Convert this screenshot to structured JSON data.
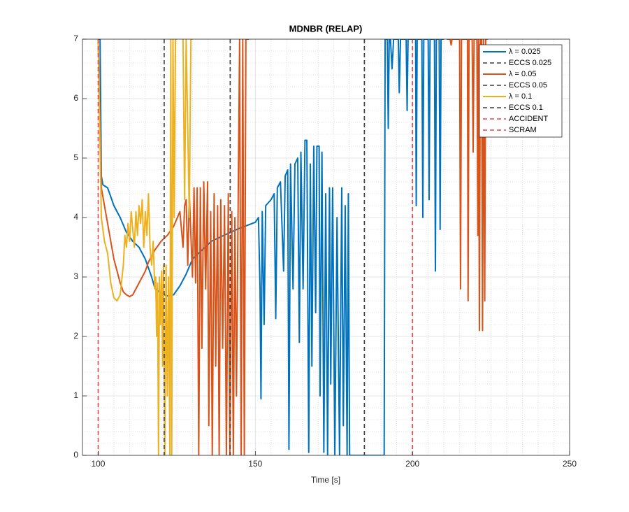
{
  "chart_data": {
    "type": "line",
    "title": "MDNBR (RELAP)",
    "xlabel": "Time [s]",
    "xlim": [
      95,
      250
    ],
    "ylim": [
      0,
      7
    ],
    "xticks": [
      100,
      150,
      200,
      250
    ],
    "yticks": [
      0,
      1,
      2,
      3,
      4,
      5,
      6,
      7
    ],
    "xminorticks": [
      105,
      110,
      115,
      120,
      125,
      130,
      135,
      140,
      145,
      155,
      160,
      165,
      170,
      175,
      180,
      185,
      190,
      195,
      205,
      210,
      215,
      220,
      225,
      230,
      235,
      240,
      245
    ],
    "yminorticks": [
      0.2,
      0.4,
      0.6,
      0.8,
      1.2,
      1.4,
      1.6,
      1.8,
      2.2,
      2.4,
      2.6,
      2.8,
      3.2,
      3.4,
      3.6,
      3.8,
      4.2,
      4.4,
      4.6,
      4.8,
      5.2,
      5.4,
      5.6,
      5.8,
      6.2,
      6.4,
      6.6,
      6.8
    ],
    "grid": true,
    "minor_grid": true,
    "legend": "northeast",
    "series": [
      {
        "name": "λ = 0.025",
        "color": "#0072BD",
        "style": "solid",
        "x": [
          100,
          100.6,
          101,
          101.5,
          103,
          105,
          107,
          109,
          111,
          113,
          115,
          117,
          118,
          120,
          122,
          124,
          126,
          128,
          130,
          133,
          136,
          140,
          145,
          150,
          151,
          151.5,
          151.8,
          152.2,
          152.8,
          153.3,
          155,
          156,
          156.5,
          157,
          158,
          159,
          159.5,
          160.3,
          160.7,
          161.2,
          162,
          162.6,
          163.5,
          164,
          164.5,
          165.2,
          165.8,
          166.4,
          167,
          167.5,
          168,
          168.6,
          169.2,
          169.6,
          170.3,
          170.6,
          171.2,
          171.8,
          172.4,
          173,
          173.6,
          174,
          174.6,
          175.3,
          176,
          176.8,
          177.5,
          178,
          178.6,
          179.2,
          179.6,
          180,
          185,
          190,
          191,
          191.3,
          192,
          192.3,
          192.6,
          193,
          193.5,
          194,
          195.5,
          195.8,
          196.2,
          198,
          198.3,
          198.6,
          201,
          201.2,
          201.5,
          203,
          203.3,
          203.6,
          205,
          205.3,
          205.6,
          207,
          207.3,
          207.6,
          208.5,
          208.8,
          209.1,
          210
        ],
        "values": [
          7,
          7,
          4.7,
          4.55,
          4.5,
          4.2,
          4.0,
          3.75,
          3.6,
          3.5,
          3.3,
          3.0,
          2.82,
          2.72,
          2.68,
          2.7,
          2.85,
          3.05,
          3.3,
          3.45,
          3.6,
          3.7,
          3.82,
          3.92,
          4.0,
          2.8,
          0.95,
          4.1,
          2.2,
          4.2,
          4.3,
          4.4,
          2.3,
          4.5,
          4.6,
          3.1,
          4.7,
          4.8,
          0.1,
          4.9,
          2.8,
          4.9,
          5.0,
          1.9,
          5.1,
          2.8,
          5.3,
          5.3,
          0.05,
          4.9,
          1.5,
          5.2,
          2.4,
          5.2,
          5.2,
          1.0,
          5.1,
          0.05,
          4.4,
          0,
          4.5,
          1.2,
          4.5,
          0,
          4.0,
          0,
          4.5,
          0.5,
          4.2,
          0,
          4.4,
          0,
          0,
          0,
          0,
          7,
          7,
          5.5,
          7,
          7,
          6.5,
          7,
          7,
          6.1,
          7,
          7,
          5.8,
          7,
          7,
          4.2,
          7,
          7,
          4.0,
          7,
          7,
          4.3,
          7,
          7,
          3.1,
          7,
          7,
          3.8,
          7,
          7
        ]
      },
      {
        "name": "ECCS 0.025",
        "color": "#404040",
        "style": "vline",
        "x": 184.7
      },
      {
        "name": "λ = 0.05",
        "color": "#D95319",
        "style": "solid",
        "x": [
          100,
          101,
          102,
          103,
          104,
          105,
          106,
          107,
          108,
          109,
          110,
          111,
          112,
          113,
          114,
          115,
          116,
          118,
          120,
          122,
          124,
          126,
          127,
          127.5,
          128,
          128.5,
          129,
          130,
          130.5,
          131,
          131.5,
          132,
          132.5,
          133,
          133.6,
          134.2,
          134.8,
          135.2,
          135.8,
          136.3,
          136.9,
          137.4,
          138,
          138.5,
          139,
          139.6,
          140.2,
          140.8,
          141.4,
          141.9,
          142.5,
          143,
          143.5,
          144,
          145,
          145.5,
          146,
          146.5,
          147,
          148,
          180,
          211,
          212,
          212.3,
          212.6,
          215,
          215.3,
          215.6,
          217.5,
          217.7,
          218,
          219,
          219.3,
          219.6,
          220.5,
          220.8,
          221,
          221.3,
          221.6,
          222,
          222.3,
          222.6,
          223,
          223.3,
          224
        ],
        "values": [
          7,
          4.5,
          4.2,
          3.9,
          3.6,
          3.3,
          3.1,
          2.9,
          2.75,
          2.7,
          2.67,
          2.7,
          2.8,
          2.9,
          3.0,
          3.1,
          3.25,
          3.45,
          3.6,
          3.7,
          3.85,
          4.1,
          3.5,
          4.2,
          4.3,
          3.2,
          4.4,
          3.0,
          4.5,
          2.9,
          4.5,
          0,
          4.5,
          1.8,
          4.6,
          2.8,
          4.6,
          0.5,
          4.1,
          0,
          4.4,
          1.5,
          4.2,
          0,
          4.3,
          1.8,
          4.2,
          0,
          4.4,
          0,
          4.1,
          0,
          4.0,
          1.0,
          7,
          0,
          7,
          0,
          7,
          7,
          null,
          7,
          7,
          6.9,
          7,
          7,
          2.8,
          7,
          7,
          2.6,
          7,
          7,
          5.1,
          7,
          7,
          3.7,
          7,
          2.1,
          7,
          7,
          2.1,
          7,
          2.6,
          7,
          7
        ]
      },
      {
        "name": "ECCS 0.05",
        "color": "#404040",
        "style": "vline",
        "x": 142
      },
      {
        "name": "λ = 0.1",
        "color": "#EDB120",
        "style": "solid",
        "x": [
          100,
          100.5,
          101,
          102,
          103,
          104,
          105,
          106,
          107,
          108,
          108.5,
          109,
          109.5,
          110,
          110.5,
          111,
          111.5,
          112,
          112.5,
          113,
          113.5,
          114,
          114.5,
          115,
          115.5,
          116,
          116.5,
          117,
          117.5,
          118,
          118.3,
          118.6,
          118.9,
          119.2,
          119.5,
          119.8,
          120.2,
          120.5,
          120.8,
          121.2,
          121.6,
          122,
          122.4,
          122.8,
          123.1,
          123.4,
          123.8,
          124.2,
          124.6,
          125,
          126,
          127,
          127.5,
          128,
          129,
          129.5,
          130
        ],
        "values": [
          7,
          5.5,
          4.0,
          3.6,
          3.4,
          2.9,
          2.65,
          2.6,
          2.7,
          3.2,
          3.7,
          3.5,
          3.9,
          3.6,
          4.1,
          3.8,
          3.5,
          4.1,
          3.7,
          4.2,
          3.9,
          4.3,
          3.5,
          4.1,
          3.7,
          4.4,
          3.5,
          3.2,
          3.6,
          2.8,
          3.0,
          2.0,
          2.9,
          0,
          3.0,
          2.2,
          3.1,
          1.5,
          3.2,
          0,
          3.2,
          1.0,
          3.0,
          0,
          7,
          0,
          7,
          4.0,
          7,
          7,
          null,
          7,
          4.3,
          7,
          4.0,
          7,
          7
        ]
      },
      {
        "name": "ECCS 0.1",
        "color": "#404040",
        "style": "vline",
        "x": 121
      },
      {
        "name": "ACCIDENT",
        "color": "#E84545",
        "style": "vline",
        "x": 100
      },
      {
        "name": "SCRAM",
        "color": "#E84545",
        "style": "vline",
        "x": 200
      }
    ]
  }
}
